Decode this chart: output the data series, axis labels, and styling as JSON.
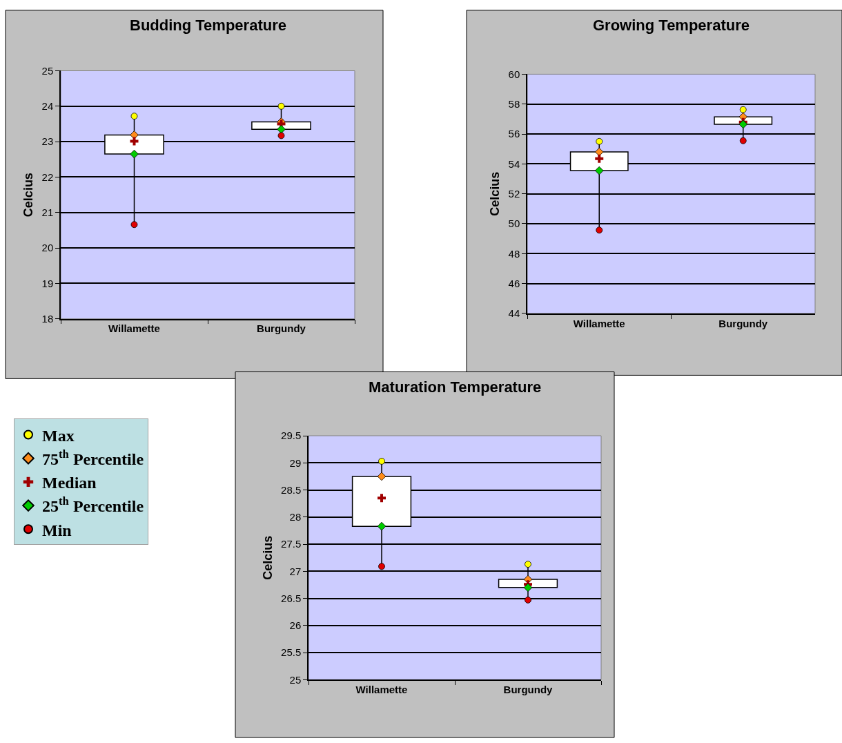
{
  "chart_data": [
    {
      "type": "box",
      "title": "Budding Temperature",
      "ylabel": "Celcius",
      "categories": [
        "Willamette",
        "Burgundy"
      ],
      "ylim": [
        18,
        25
      ],
      "yticks": [
        18,
        19,
        20,
        21,
        22,
        23,
        24,
        25
      ],
      "grid": "y",
      "legend": "bottom left",
      "boxes": [
        {
          "low": 20.66,
          "q1": 22.65,
          "q3": 23.19,
          "high": 23.72
        },
        {
          "low": 23.17,
          "q1": 23.35,
          "q3": 23.56,
          "high": 24.0
        }
      ],
      "series": [
        {
          "name": "Max",
          "type": "scatter",
          "marker": "circle",
          "color": "#ffff00",
          "values": [
            23.72,
            24.0
          ]
        },
        {
          "name": "75$^{th}$ Percentile",
          "type": "scatter",
          "marker": "diamond",
          "color": "#ff8c1a",
          "values": [
            23.19,
            23.56
          ]
        },
        {
          "name": "Median",
          "type": "scatter",
          "marker": "cross",
          "color": "#a00000",
          "values": [
            23.01,
            23.5
          ]
        },
        {
          "name": "25$^{th}$ Percentile",
          "type": "scatter",
          "marker": "diamond",
          "color": "#00cc00",
          "values": [
            22.65,
            23.35
          ]
        },
        {
          "name": "Min",
          "type": "scatter",
          "marker": "circle",
          "color": "#e00000",
          "values": [
            20.66,
            23.17
          ]
        }
      ]
    },
    {
      "type": "box",
      "title": "Growing Temperature",
      "ylabel": "Celcius",
      "categories": [
        "Willamette",
        "Burgundy"
      ],
      "ylim": [
        44,
        60
      ],
      "yticks": [
        44,
        46,
        48,
        50,
        52,
        54,
        56,
        58,
        60
      ],
      "grid": "y",
      "boxes": [
        {
          "low": 49.57,
          "q1": 53.55,
          "q3": 54.8,
          "high": 55.5
        },
        {
          "low": 55.55,
          "q1": 56.65,
          "q3": 57.15,
          "high": 57.63
        }
      ],
      "series": [
        {
          "type": "scatter",
          "marker": "circle",
          "color": "#ffff00",
          "values": [
            55.5,
            57.63
          ]
        },
        {
          "type": "scatter",
          "marker": "diamond",
          "color": "#ff8c1a",
          "values": [
            54.8,
            57.15
          ]
        },
        {
          "type": "scatter",
          "marker": "cross",
          "color": "#a00000",
          "values": [
            54.35,
            56.8
          ]
        },
        {
          "type": "scatter",
          "marker": "diamond",
          "color": "#00cc00",
          "values": [
            53.55,
            56.65
          ]
        },
        {
          "type": "scatter",
          "marker": "circle",
          "color": "#e00000",
          "values": [
            49.57,
            55.55
          ]
        }
      ]
    },
    {
      "type": "box",
      "title": "Maturation Temperature",
      "ylabel": "Celcius",
      "categories": [
        "Willamette",
        "Burgundy"
      ],
      "ylim": [
        25,
        29.5
      ],
      "yticks": [
        25,
        25.5,
        26,
        26.5,
        27,
        27.5,
        28,
        28.5,
        29,
        29.5
      ],
      "grid": "y",
      "boxes": [
        {
          "low": 27.09,
          "q1": 27.83,
          "q3": 28.75,
          "high": 29.03
        },
        {
          "low": 26.47,
          "q1": 26.7,
          "q3": 26.85,
          "high": 27.13
        }
      ],
      "series": [
        {
          "type": "scatter",
          "marker": "circle",
          "color": "#ffff00",
          "values": [
            29.03,
            27.13
          ]
        },
        {
          "type": "scatter",
          "marker": "diamond",
          "color": "#ff8c1a",
          "values": [
            28.75,
            26.85
          ]
        },
        {
          "type": "scatter",
          "marker": "cross",
          "color": "#a00000",
          "values": [
            28.35,
            26.76
          ]
        },
        {
          "type": "scatter",
          "marker": "diamond",
          "color": "#00cc00",
          "values": [
            27.83,
            26.7
          ]
        },
        {
          "type": "scatter",
          "marker": "circle",
          "color": "#e00000",
          "values": [
            27.09,
            26.47
          ]
        }
      ]
    }
  ]
}
